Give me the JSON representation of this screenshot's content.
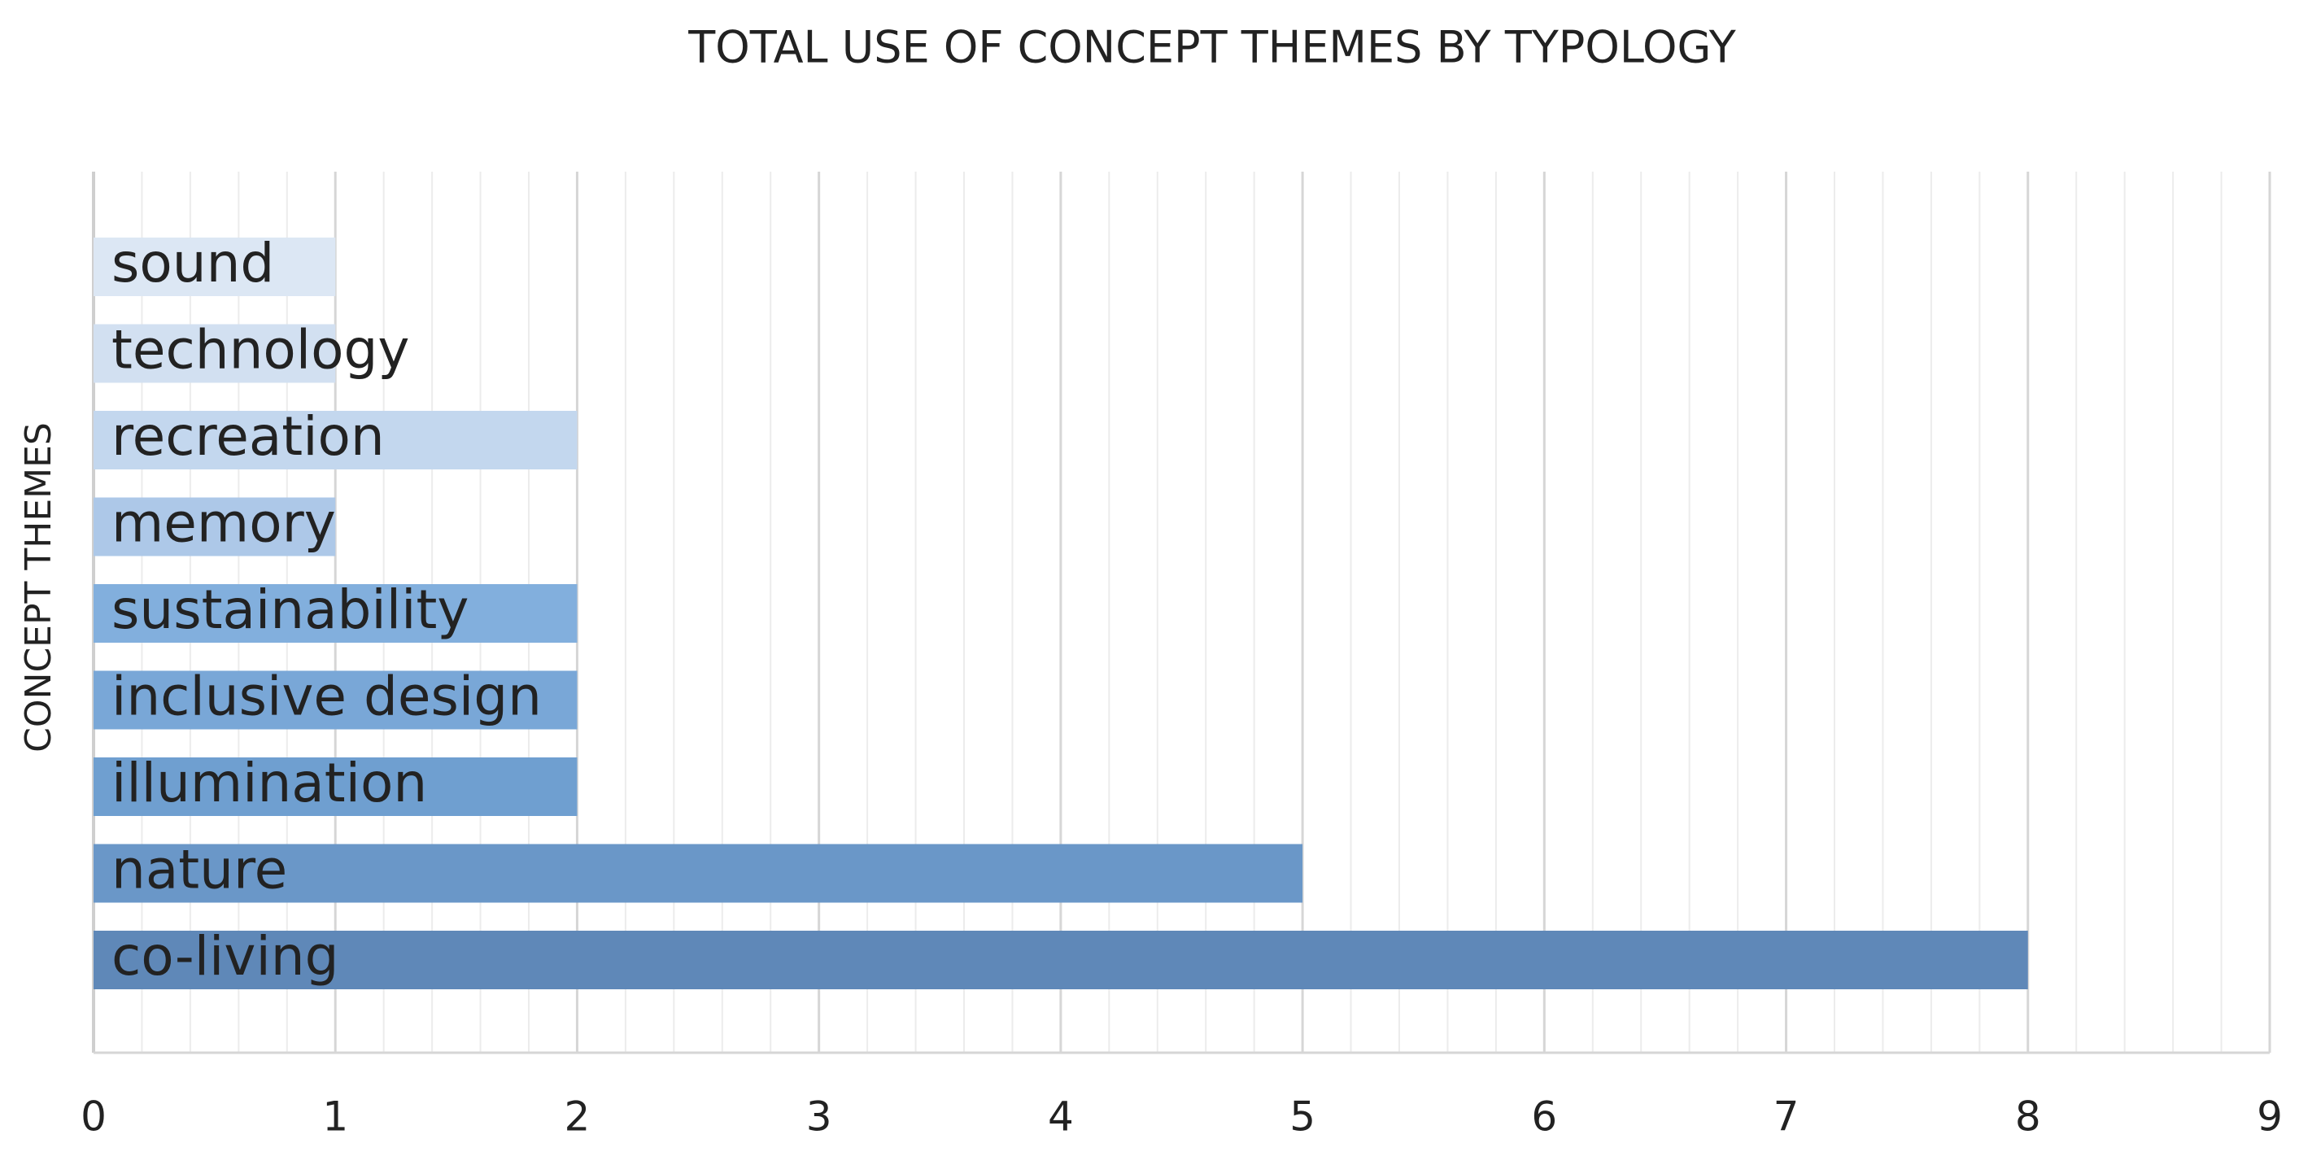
{
  "chart_data": {
    "type": "barh",
    "title": "TOTAL USE OF CONCEPT THEMES BY TYPOLOGY",
    "y_label": "CONCEPT  THEMES",
    "categories": [
      "sound",
      "technology",
      "recreation",
      "memory",
      "sustainability",
      "inclusive design",
      "illumination",
      "nature",
      "co-living"
    ],
    "values": [
      1,
      1,
      2,
      1,
      2,
      2,
      2,
      5,
      8
    ],
    "colors": [
      "#dce7f4",
      "#d2e0f1",
      "#c3d7ee",
      "#adc8e8",
      "#82afdd",
      "#79a7d7",
      "#6f9fd0",
      "#6a97c8",
      "#5f88b8"
    ],
    "xlim": [
      0,
      9
    ],
    "xticks": [
      0,
      1,
      2,
      3,
      4,
      5,
      6,
      7,
      8,
      9
    ],
    "grid": true,
    "minor_grid_divisions": 5
  }
}
